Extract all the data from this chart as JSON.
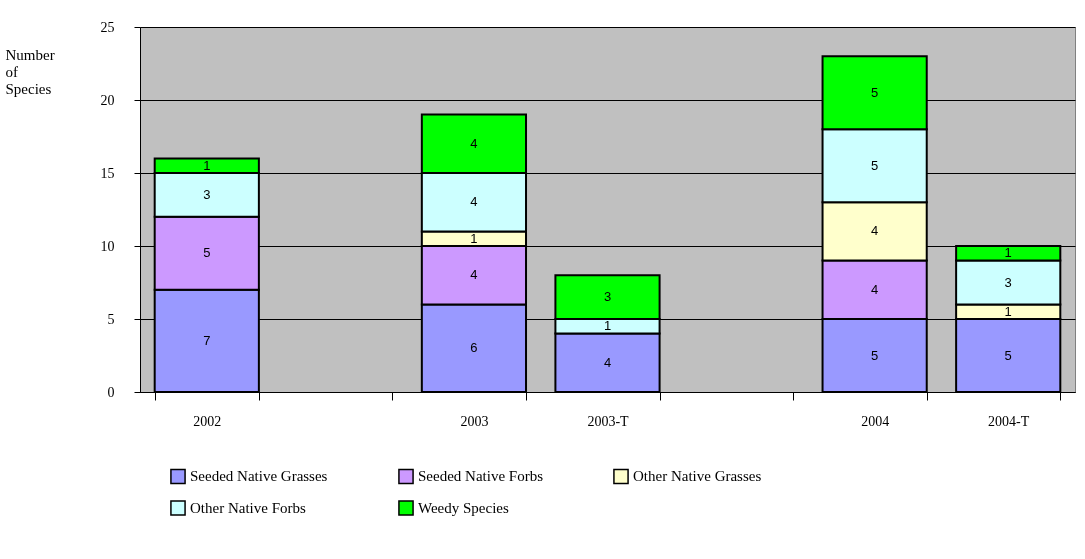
{
  "chart_data": {
    "type": "bar",
    "stacked": true,
    "ylabel": "Number of Species",
    "categories": [
      "2002",
      null,
      "2003",
      "2003-T",
      null,
      "2004",
      "2004-T"
    ],
    "series": [
      {
        "name": "Seeded Native Grasses",
        "color": "#9999ff",
        "values": [
          7,
          null,
          6,
          4,
          null,
          5,
          5
        ]
      },
      {
        "name": "Seeded Native Forbs",
        "color": "#cc99ff",
        "values": [
          5,
          null,
          4,
          null,
          null,
          4,
          null
        ]
      },
      {
        "name": "Other Native Grasses",
        "color": "#ffffcc",
        "values": [
          null,
          null,
          1,
          null,
          null,
          4,
          1
        ]
      },
      {
        "name": "Other Native Forbs",
        "color": "#ccffff",
        "values": [
          3,
          null,
          4,
          1,
          null,
          5,
          3
        ]
      },
      {
        "name": "Weedy Species",
        "color": "#00ff00",
        "values": [
          1,
          null,
          4,
          3,
          null,
          5,
          1
        ]
      }
    ],
    "ylim": [
      0,
      25
    ],
    "yticks": [
      0,
      5,
      10,
      15,
      20,
      25
    ],
    "grid": "y",
    "legend": "bottom",
    "data_labels": true
  }
}
